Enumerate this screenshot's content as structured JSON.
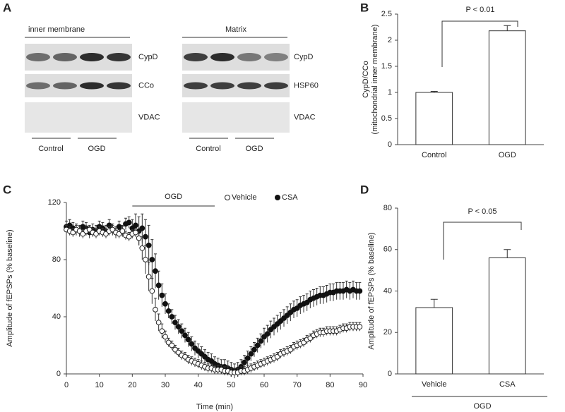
{
  "panel_letters": [
    "A",
    "B",
    "C",
    "D"
  ],
  "blots": [
    {
      "title": "inner membrane",
      "rows": [
        "CypD",
        "CCo",
        "VDAC"
      ],
      "groups": [
        "Control",
        "OGD"
      ]
    },
    {
      "title": "Matrix",
      "rows": [
        "CypD",
        "HSP60",
        "VDAC"
      ],
      "groups": [
        "Control",
        "OGD"
      ]
    }
  ],
  "chart_data": [
    {
      "type": "bar",
      "ylabel": [
        "CypD/CCo",
        "(mitochondrial inner membrane)"
      ],
      "categories": [
        "Control",
        "OGD"
      ],
      "values": [
        1.0,
        2.18
      ],
      "errors": [
        0.02,
        0.1
      ],
      "color": "#ffffff",
      "edge_color": "#333333",
      "ylim": [
        0,
        2.5
      ],
      "yticks": [
        0,
        0.5,
        1,
        1.5,
        2,
        2.5
      ],
      "annotation": "P < 0.01"
    },
    {
      "type": "line",
      "xlabel": "Time (min)",
      "ylabel": "Amplitude of fEPSPs (% baseline)",
      "annotation": "OGD",
      "annotation_span": [
        20,
        45
      ],
      "legend": "top",
      "xlim": [
        0,
        90
      ],
      "xticks": [
        0,
        10,
        20,
        30,
        40,
        50,
        60,
        70,
        80,
        90
      ],
      "ylim": [
        0,
        120
      ],
      "yticks": [
        0,
        40,
        80,
        120
      ],
      "x": [
        0,
        1,
        2,
        3,
        4,
        5,
        6,
        7,
        8,
        9,
        10,
        11,
        12,
        13,
        14,
        15,
        16,
        17,
        18,
        19,
        20,
        21,
        22,
        23,
        24,
        25,
        26,
        27,
        28,
        29,
        30,
        31,
        32,
        33,
        34,
        35,
        36,
        37,
        38,
        39,
        40,
        41,
        42,
        43,
        44,
        45,
        46,
        47,
        48,
        49,
        50,
        51,
        52,
        53,
        54,
        55,
        56,
        57,
        58,
        59,
        60,
        61,
        62,
        63,
        64,
        65,
        66,
        67,
        68,
        69,
        70,
        71,
        72,
        73,
        74,
        75,
        76,
        77,
        78,
        79,
        80,
        81,
        82,
        83,
        84,
        85,
        86,
        87,
        88,
        89
      ],
      "series": [
        {
          "name": "Vehicle",
          "color": "#ffffff",
          "edge_color": "#222222",
          "values": [
            101,
            100,
            99,
            101,
            100,
            98,
            100,
            101,
            99,
            98,
            100,
            99,
            98,
            100,
            101,
            99,
            98,
            100,
            97,
            96,
            98,
            99,
            95,
            88,
            80,
            68,
            58,
            45,
            36,
            30,
            26,
            22,
            20,
            17,
            15,
            13,
            12,
            10,
            9,
            8,
            7,
            6,
            5,
            4,
            4,
            3,
            3,
            3,
            2,
            2,
            1,
            1,
            1,
            2,
            2,
            3,
            4,
            5,
            6,
            7,
            8,
            9,
            10,
            11,
            12,
            14,
            15,
            16,
            17,
            19,
            20,
            21,
            22,
            24,
            25,
            27,
            28,
            29,
            29,
            30,
            30,
            30,
            30,
            31,
            32,
            32,
            33,
            33,
            33,
            33
          ],
          "errors": [
            3,
            3,
            3,
            3,
            3,
            3,
            3,
            3,
            3,
            3,
            3,
            3,
            3,
            3,
            3,
            3,
            3,
            3,
            3,
            3,
            3,
            3,
            5,
            8,
            10,
            10,
            9,
            8,
            6,
            5,
            4,
            3,
            3,
            3,
            3,
            3,
            3,
            3,
            3,
            3,
            3,
            3,
            3,
            3,
            3,
            3,
            3,
            3,
            3,
            3,
            3,
            3,
            3,
            3,
            3,
            3,
            3,
            3,
            3,
            3,
            3,
            3,
            3,
            3,
            3,
            3,
            3,
            3,
            3,
            3,
            3,
            3,
            3,
            3,
            3,
            3,
            3,
            3,
            3,
            3,
            3,
            3,
            3,
            3,
            3,
            3,
            3,
            3,
            3,
            3
          ]
        },
        {
          "name": "CSA",
          "color": "#111111",
          "edge_color": "#111111",
          "values": [
            103,
            104,
            102,
            101,
            100,
            103,
            102,
            99,
            101,
            100,
            103,
            102,
            100,
            104,
            101,
            99,
            103,
            100,
            105,
            106,
            102,
            104,
            100,
            102,
            96,
            90,
            80,
            72,
            62,
            55,
            49,
            44,
            40,
            36,
            33,
            30,
            27,
            24,
            21,
            18,
            16,
            14,
            12,
            10,
            9,
            7,
            6,
            5,
            5,
            4,
            3,
            2,
            3,
            5,
            8,
            11,
            14,
            17,
            20,
            23,
            26,
            28,
            31,
            33,
            35,
            37,
            39,
            41,
            43,
            45,
            46,
            48,
            49,
            50,
            52,
            53,
            54,
            55,
            55,
            56,
            57,
            57,
            58,
            58,
            58,
            59,
            58,
            59,
            58,
            58
          ],
          "errors": [
            4,
            4,
            4,
            4,
            4,
            4,
            4,
            4,
            4,
            4,
            4,
            4,
            4,
            4,
            4,
            4,
            4,
            4,
            4,
            4,
            6,
            8,
            10,
            10,
            12,
            14,
            14,
            12,
            10,
            8,
            7,
            5,
            5,
            5,
            5,
            5,
            5,
            5,
            5,
            5,
            5,
            5,
            5,
            5,
            5,
            5,
            5,
            5,
            5,
            5,
            5,
            5,
            5,
            5,
            5,
            5,
            5,
            5,
            5,
            5,
            6,
            6,
            6,
            6,
            6,
            6,
            6,
            6,
            6,
            6,
            6,
            6,
            6,
            6,
            6,
            6,
            6,
            6,
            6,
            6,
            6,
            6,
            6,
            6,
            6,
            6,
            6,
            6,
            6,
            6
          ]
        }
      ]
    },
    {
      "type": "bar",
      "ylabel": "Amplitude of fEPSPs (% baseline)",
      "categories": [
        "Vehicle",
        "CSA"
      ],
      "values": [
        32,
        56
      ],
      "errors": [
        4,
        4
      ],
      "color": "#ffffff",
      "edge_color": "#333333",
      "group_label": "OGD",
      "ylim": [
        0,
        80
      ],
      "yticks": [
        0,
        20,
        40,
        60,
        80
      ],
      "annotation": "P < 0.05"
    }
  ]
}
